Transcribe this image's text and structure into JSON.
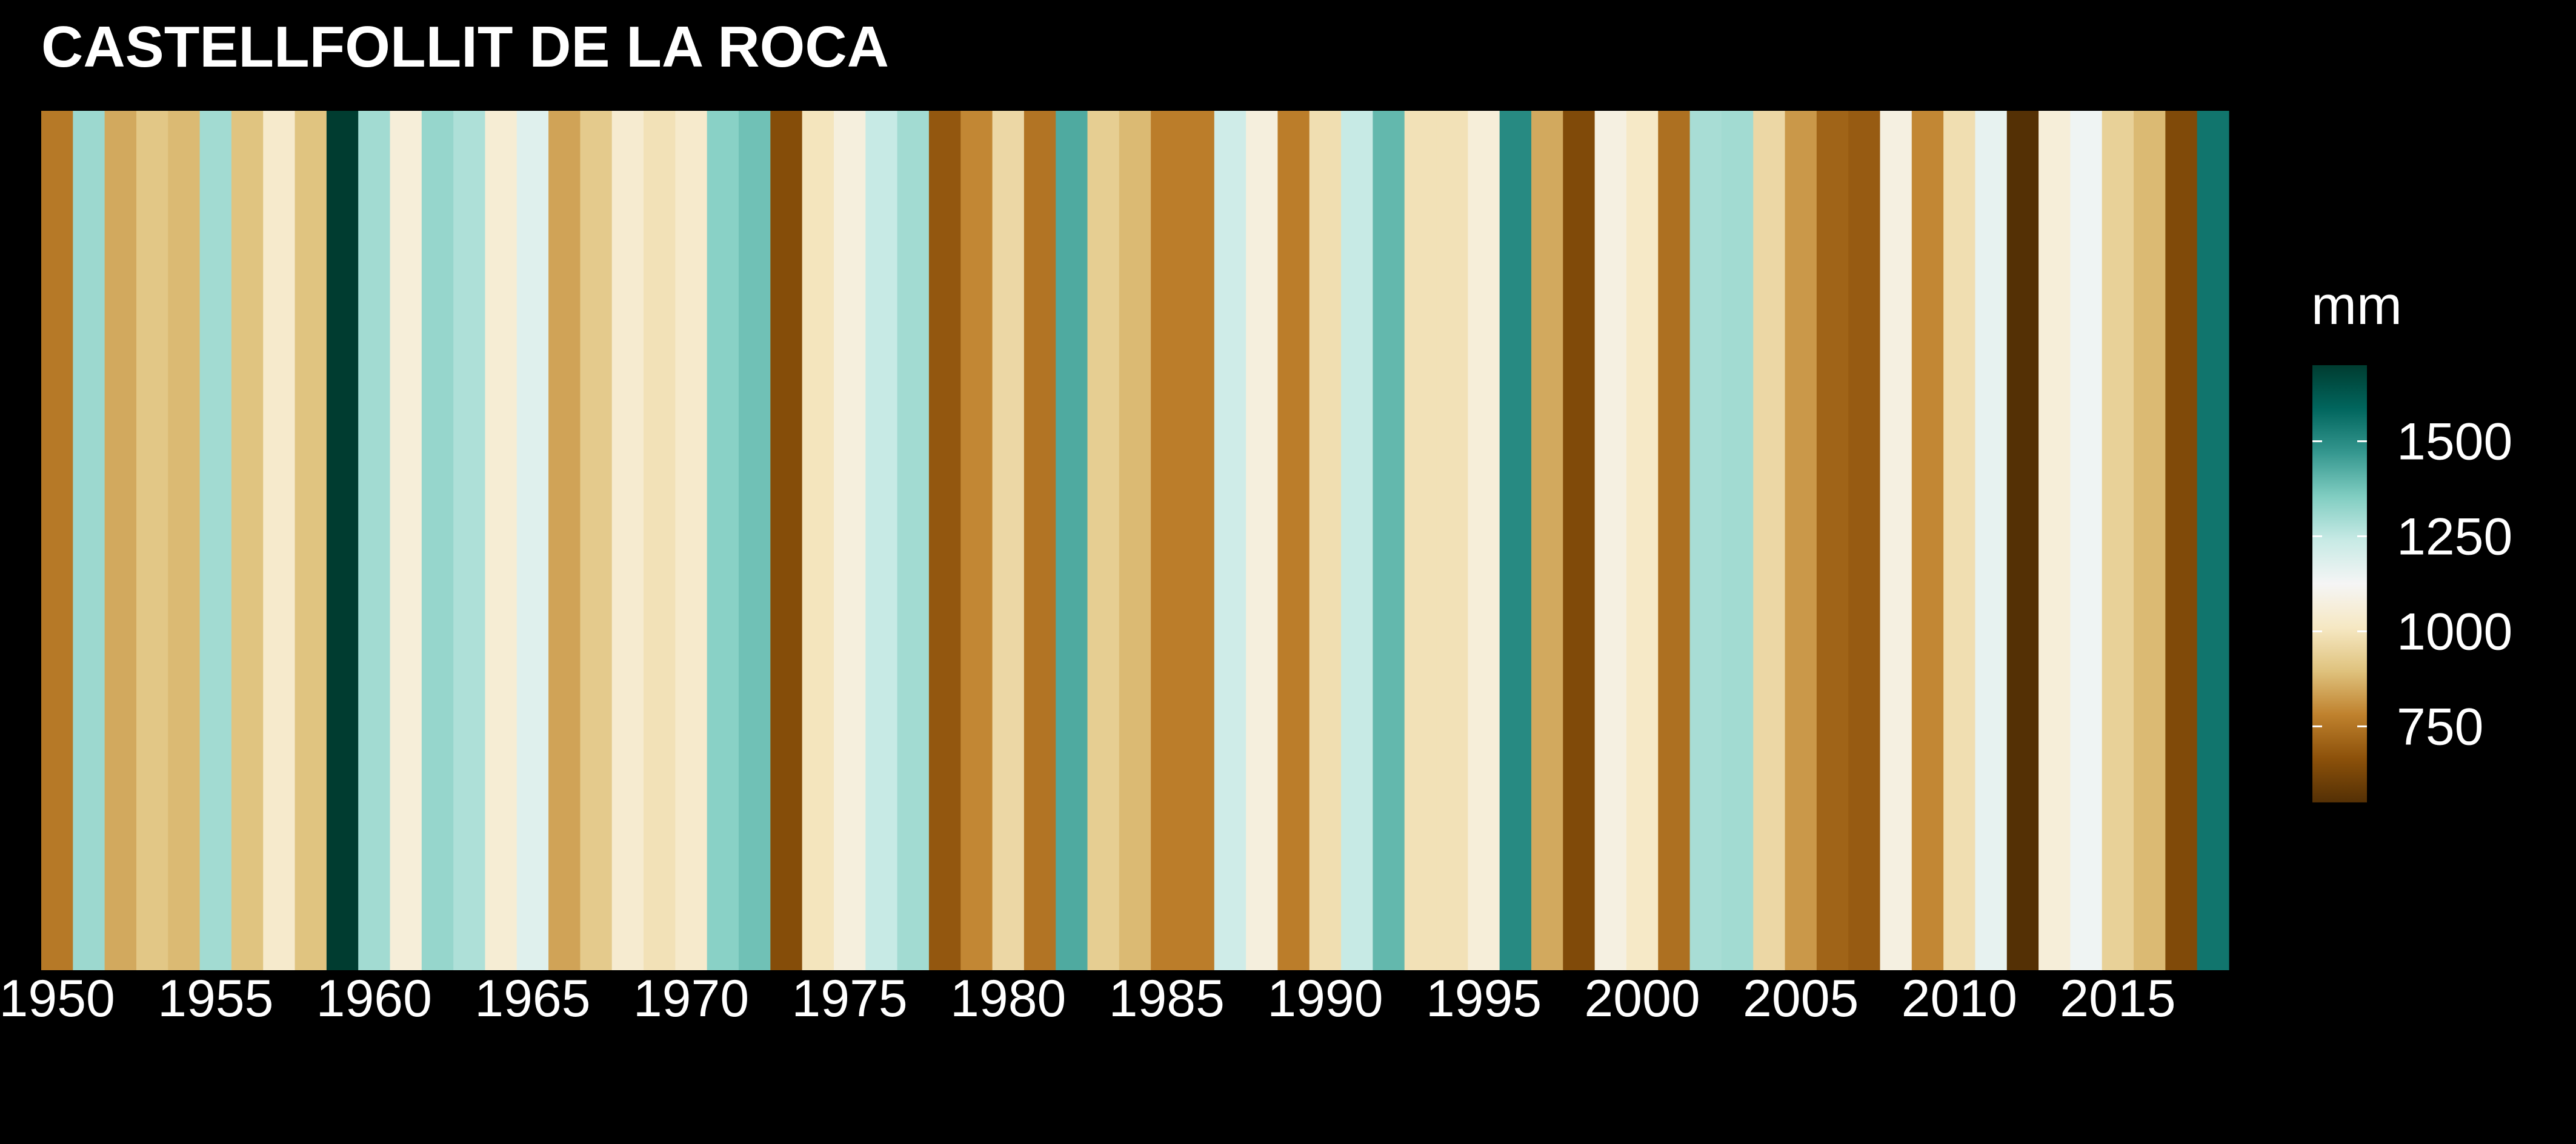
{
  "chart_data": {
    "type": "heatmap",
    "title": "CASTELLFOLLIT DE LA ROCA",
    "xlabel": "",
    "ylabel": "",
    "x_ticks": [
      1950,
      1955,
      1960,
      1965,
      1970,
      1975,
      1980,
      1985,
      1990,
      1995,
      2000,
      2005,
      2010,
      2015
    ],
    "x_range": [
      1950,
      2018
    ],
    "years": [
      1950,
      1951,
      1952,
      1953,
      1954,
      1955,
      1956,
      1957,
      1958,
      1959,
      1960,
      1961,
      1962,
      1963,
      1964,
      1965,
      1966,
      1967,
      1968,
      1969,
      1970,
      1971,
      1972,
      1973,
      1974,
      1975,
      1976,
      1977,
      1978,
      1979,
      1980,
      1981,
      1982,
      1983,
      1984,
      1985,
      1986,
      1987,
      1988,
      1989,
      1990,
      1991,
      1992,
      1993,
      1994,
      1995,
      1996,
      1997,
      1998,
      1999,
      2000,
      2001,
      2002,
      2003,
      2004,
      2005,
      2006,
      2007,
      2008,
      2009,
      2010,
      2011,
      2012,
      2013,
      2014,
      2015,
      2016,
      2017,
      2018
    ],
    "values": [
      760,
      1310,
      850,
      910,
      880,
      1300,
      900,
      1030,
      900,
      1700,
      1300,
      1060,
      1320,
      1280,
      1050,
      1180,
      840,
      920,
      1040,
      990,
      1030,
      1340,
      1380,
      650,
      1000,
      1070,
      1240,
      1300,
      680,
      790,
      960,
      750,
      1430,
      930,
      880,
      770,
      770,
      1220,
      1070,
      770,
      980,
      1240,
      1400,
      990,
      990,
      1060,
      1500,
      850,
      640,
      1080,
      1020,
      740,
      1290,
      1300,
      960,
      820,
      710,
      690,
      1080,
      790,
      980,
      1160,
      550,
      1060,
      1140,
      940,
      880,
      640,
      1550
    ],
    "legend": {
      "title": "mm",
      "ticks": [
        750,
        1000,
        1250,
        1500
      ],
      "range": [
        550,
        1700
      ],
      "placement": "right"
    },
    "colormap": [
      "#543005",
      "#8c510a",
      "#bf812d",
      "#dfc27d",
      "#f6e8c3",
      "#f5f5f5",
      "#c7eae5",
      "#80cdc1",
      "#35978f",
      "#01665e",
      "#003c30"
    ],
    "background": "#000000"
  }
}
